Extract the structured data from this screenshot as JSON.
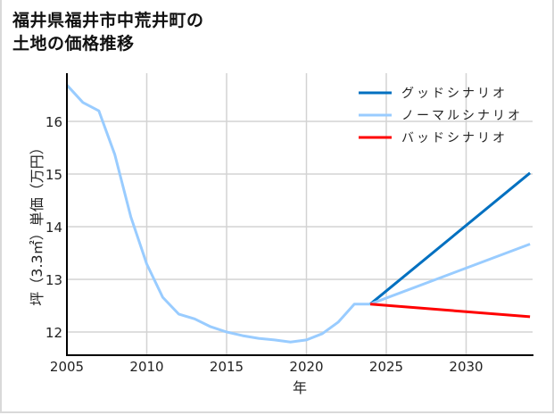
{
  "title": {
    "line1": "福井県福井市中荒井町の",
    "line2": "土地の価格推移"
  },
  "chart_data": {
    "type": "line",
    "title": "福井県福井市中荒井町の土地の価格推移",
    "xlabel": "年",
    "ylabel": "坪（3.3㎡）単価（万円）",
    "xlim": [
      2005,
      2034
    ],
    "ylim": [
      11.6,
      16.95
    ],
    "x_ticks": [
      2005,
      2010,
      2015,
      2020,
      2025,
      2030
    ],
    "y_ticks": [
      12,
      13,
      14,
      15,
      16
    ],
    "grid": true,
    "legend_position": "upper right",
    "series": [
      {
        "name": "ノーマルシナリオ",
        "role": "history",
        "color": "#99ccff",
        "x": [
          2005,
          2006,
          2007,
          2008,
          2009,
          2010,
          2011,
          2012,
          2013,
          2014,
          2015,
          2016,
          2017,
          2018,
          2019,
          2020,
          2021,
          2022,
          2023,
          2024
        ],
        "values": [
          16.69,
          16.36,
          16.2,
          15.37,
          14.19,
          13.29,
          12.66,
          12.34,
          12.25,
          12.1,
          12.0,
          11.93,
          11.88,
          11.85,
          11.81,
          11.85,
          11.97,
          12.19,
          12.53,
          12.53
        ]
      },
      {
        "name": "グッドシナリオ",
        "color": "#0070c0",
        "x": [
          2024,
          2034
        ],
        "values": [
          12.53,
          15.02
        ]
      },
      {
        "name": "ノーマルシナリオ",
        "color": "#99ccff",
        "x": [
          2024,
          2034
        ],
        "values": [
          12.53,
          13.67
        ]
      },
      {
        "name": "バッドシナリオ",
        "color": "#ff0000",
        "x": [
          2024,
          2034
        ],
        "values": [
          12.53,
          12.29
        ]
      }
    ],
    "legend": [
      {
        "label": "グッドシナリオ",
        "color": "#0070c0"
      },
      {
        "label": "ノーマルシナリオ",
        "color": "#99ccff"
      },
      {
        "label": "バッドシナリオ",
        "color": "#ff0000"
      }
    ]
  },
  "colors": {
    "grid": "#d3d3d3",
    "axis": "#000000",
    "frame": "#d9d9d9"
  }
}
